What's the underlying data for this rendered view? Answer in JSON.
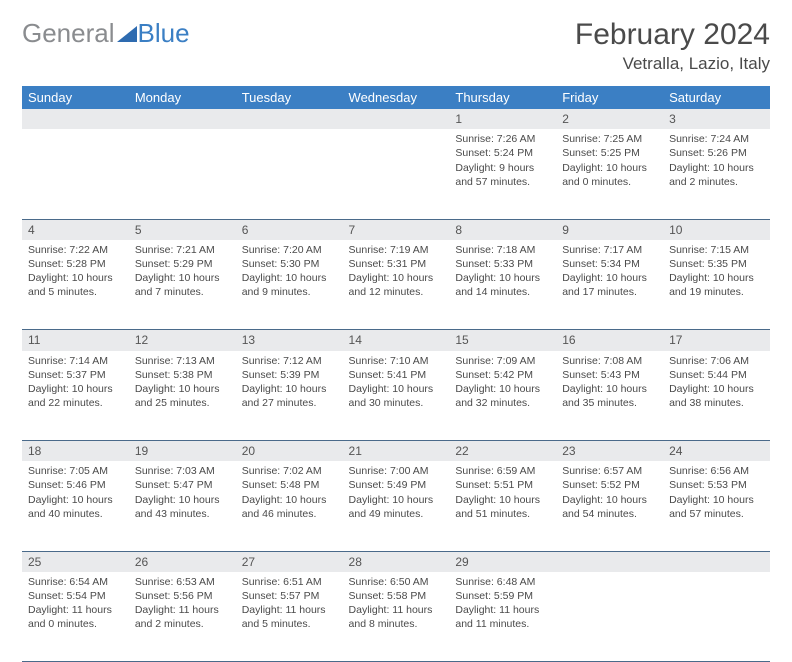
{
  "brand": {
    "part1": "General",
    "part2": "Blue"
  },
  "title": "February 2024",
  "location": "Vetralla, Lazio, Italy",
  "colors": {
    "header_bg": "#3b7fc4",
    "header_text": "#ffffff",
    "daynum_bg": "#e9eaec",
    "text": "#4a4a4a",
    "rule": "#4a6a8a",
    "logo_gray": "#8a8c8f",
    "logo_blue": "#3b7fc4"
  },
  "weekdays": [
    "Sunday",
    "Monday",
    "Tuesday",
    "Wednesday",
    "Thursday",
    "Friday",
    "Saturday"
  ],
  "weeks": [
    [
      null,
      null,
      null,
      null,
      {
        "n": "1",
        "sr": "Sunrise: 7:26 AM",
        "ss": "Sunset: 5:24 PM",
        "dl": "Daylight: 9 hours and 57 minutes."
      },
      {
        "n": "2",
        "sr": "Sunrise: 7:25 AM",
        "ss": "Sunset: 5:25 PM",
        "dl": "Daylight: 10 hours and 0 minutes."
      },
      {
        "n": "3",
        "sr": "Sunrise: 7:24 AM",
        "ss": "Sunset: 5:26 PM",
        "dl": "Daylight: 10 hours and 2 minutes."
      }
    ],
    [
      {
        "n": "4",
        "sr": "Sunrise: 7:22 AM",
        "ss": "Sunset: 5:28 PM",
        "dl": "Daylight: 10 hours and 5 minutes."
      },
      {
        "n": "5",
        "sr": "Sunrise: 7:21 AM",
        "ss": "Sunset: 5:29 PM",
        "dl": "Daylight: 10 hours and 7 minutes."
      },
      {
        "n": "6",
        "sr": "Sunrise: 7:20 AM",
        "ss": "Sunset: 5:30 PM",
        "dl": "Daylight: 10 hours and 9 minutes."
      },
      {
        "n": "7",
        "sr": "Sunrise: 7:19 AM",
        "ss": "Sunset: 5:31 PM",
        "dl": "Daylight: 10 hours and 12 minutes."
      },
      {
        "n": "8",
        "sr": "Sunrise: 7:18 AM",
        "ss": "Sunset: 5:33 PM",
        "dl": "Daylight: 10 hours and 14 minutes."
      },
      {
        "n": "9",
        "sr": "Sunrise: 7:17 AM",
        "ss": "Sunset: 5:34 PM",
        "dl": "Daylight: 10 hours and 17 minutes."
      },
      {
        "n": "10",
        "sr": "Sunrise: 7:15 AM",
        "ss": "Sunset: 5:35 PM",
        "dl": "Daylight: 10 hours and 19 minutes."
      }
    ],
    [
      {
        "n": "11",
        "sr": "Sunrise: 7:14 AM",
        "ss": "Sunset: 5:37 PM",
        "dl": "Daylight: 10 hours and 22 minutes."
      },
      {
        "n": "12",
        "sr": "Sunrise: 7:13 AM",
        "ss": "Sunset: 5:38 PM",
        "dl": "Daylight: 10 hours and 25 minutes."
      },
      {
        "n": "13",
        "sr": "Sunrise: 7:12 AM",
        "ss": "Sunset: 5:39 PM",
        "dl": "Daylight: 10 hours and 27 minutes."
      },
      {
        "n": "14",
        "sr": "Sunrise: 7:10 AM",
        "ss": "Sunset: 5:41 PM",
        "dl": "Daylight: 10 hours and 30 minutes."
      },
      {
        "n": "15",
        "sr": "Sunrise: 7:09 AM",
        "ss": "Sunset: 5:42 PM",
        "dl": "Daylight: 10 hours and 32 minutes."
      },
      {
        "n": "16",
        "sr": "Sunrise: 7:08 AM",
        "ss": "Sunset: 5:43 PM",
        "dl": "Daylight: 10 hours and 35 minutes."
      },
      {
        "n": "17",
        "sr": "Sunrise: 7:06 AM",
        "ss": "Sunset: 5:44 PM",
        "dl": "Daylight: 10 hours and 38 minutes."
      }
    ],
    [
      {
        "n": "18",
        "sr": "Sunrise: 7:05 AM",
        "ss": "Sunset: 5:46 PM",
        "dl": "Daylight: 10 hours and 40 minutes."
      },
      {
        "n": "19",
        "sr": "Sunrise: 7:03 AM",
        "ss": "Sunset: 5:47 PM",
        "dl": "Daylight: 10 hours and 43 minutes."
      },
      {
        "n": "20",
        "sr": "Sunrise: 7:02 AM",
        "ss": "Sunset: 5:48 PM",
        "dl": "Daylight: 10 hours and 46 minutes."
      },
      {
        "n": "21",
        "sr": "Sunrise: 7:00 AM",
        "ss": "Sunset: 5:49 PM",
        "dl": "Daylight: 10 hours and 49 minutes."
      },
      {
        "n": "22",
        "sr": "Sunrise: 6:59 AM",
        "ss": "Sunset: 5:51 PM",
        "dl": "Daylight: 10 hours and 51 minutes."
      },
      {
        "n": "23",
        "sr": "Sunrise: 6:57 AM",
        "ss": "Sunset: 5:52 PM",
        "dl": "Daylight: 10 hours and 54 minutes."
      },
      {
        "n": "24",
        "sr": "Sunrise: 6:56 AM",
        "ss": "Sunset: 5:53 PM",
        "dl": "Daylight: 10 hours and 57 minutes."
      }
    ],
    [
      {
        "n": "25",
        "sr": "Sunrise: 6:54 AM",
        "ss": "Sunset: 5:54 PM",
        "dl": "Daylight: 11 hours and 0 minutes."
      },
      {
        "n": "26",
        "sr": "Sunrise: 6:53 AM",
        "ss": "Sunset: 5:56 PM",
        "dl": "Daylight: 11 hours and 2 minutes."
      },
      {
        "n": "27",
        "sr": "Sunrise: 6:51 AM",
        "ss": "Sunset: 5:57 PM",
        "dl": "Daylight: 11 hours and 5 minutes."
      },
      {
        "n": "28",
        "sr": "Sunrise: 6:50 AM",
        "ss": "Sunset: 5:58 PM",
        "dl": "Daylight: 11 hours and 8 minutes."
      },
      {
        "n": "29",
        "sr": "Sunrise: 6:48 AM",
        "ss": "Sunset: 5:59 PM",
        "dl": "Daylight: 11 hours and 11 minutes."
      },
      null,
      null
    ]
  ]
}
